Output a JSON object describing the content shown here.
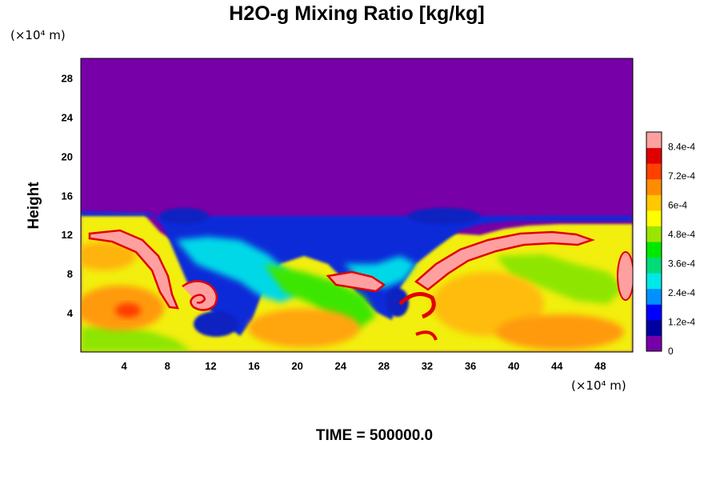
{
  "chart_data": {
    "type": "heatmap",
    "title": "H2O-g Mixing Ratio [kg/kg]",
    "ylabel": "Height",
    "x_unit": "(×10⁴ m)",
    "y_unit": "(×10⁴ m)",
    "footer": "TIME = 500000.0",
    "xlim": [
      0,
      51
    ],
    "ylim": [
      0,
      30
    ],
    "x_ticks": [
      4,
      8,
      12,
      16,
      20,
      24,
      28,
      32,
      36,
      40,
      44,
      48
    ],
    "y_ticks": [
      4,
      8,
      12,
      16,
      20,
      24,
      28
    ],
    "x_tick_labels": [
      "4",
      "8",
      "12",
      "16",
      "20",
      "24",
      "28",
      "32",
      "36",
      "40",
      "44",
      "48"
    ],
    "y_tick_labels": [
      "4",
      "8",
      "12",
      "16",
      "20",
      "24",
      "28"
    ],
    "colorbar": {
      "min": 0,
      "max": 0.0009,
      "ticks": [
        0,
        0.00012,
        0.00024,
        0.00036,
        0.00048,
        0.0006,
        0.00072,
        0.00084
      ],
      "tick_labels": [
        "0",
        "1.2e-4",
        "2.4e-4",
        "3.6e-4",
        "4.8e-4",
        "6e-4",
        "7.2e-4",
        "8.4e-4"
      ],
      "colors": [
        "#7800a8",
        "#0000a0",
        "#0000ff",
        "#0090ff",
        "#00e8e8",
        "#00dc78",
        "#00e800",
        "#9ae600",
        "#ffff00",
        "#ffc800",
        "#ff8c00",
        "#ff4000",
        "#e00000",
        "#ffa0a0"
      ]
    },
    "field_description": {
      "dry_layer_top_km_x10": 14,
      "background_value_above_layer": 0
    }
  }
}
